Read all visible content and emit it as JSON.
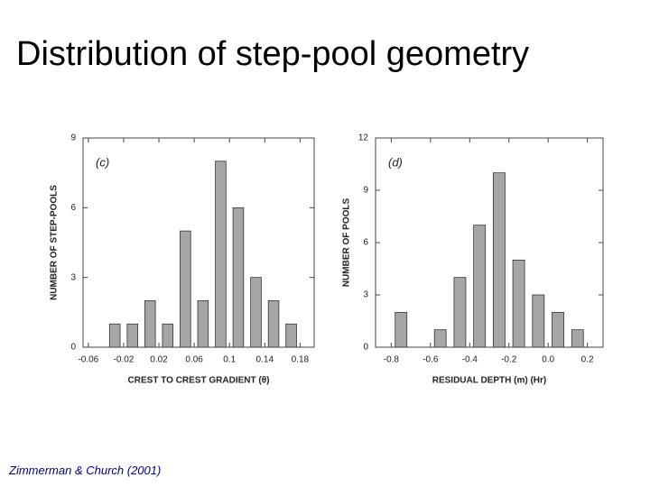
{
  "title": "Distribution of step-pool geometry",
  "citation": "Zimmerman & Church (2001)",
  "chart_data": [
    {
      "type": "histogram",
      "panel_label": "(c)",
      "xlabel": "CREST TO CREST GRADIENT (θ)",
      "ylabel": "NUMBER OF STEP-POOLS",
      "bins": [
        -0.04,
        -0.02,
        0,
        0.02,
        0.04,
        0.06,
        0.08,
        0.1,
        0.12,
        0.14,
        0.16,
        0.18
      ],
      "values": [
        1,
        1,
        2,
        1,
        5,
        2,
        8,
        6,
        3,
        2,
        1
      ],
      "color": "#a6a6a6",
      "xlim": [
        -0.066,
        0.196
      ],
      "xticks": [
        -0.06,
        -0.02,
        0.02,
        0.06,
        0.1,
        0.14,
        0.18
      ],
      "ylim": [
        0,
        9
      ],
      "yticks": [
        0,
        3,
        6,
        9
      ]
    },
    {
      "type": "histogram",
      "panel_label": "(d)",
      "xlabel": "RESIDUAL DEPTH (m) (Hr)",
      "ylabel": "NUMBER OF POOLS",
      "bins": [
        -0.8,
        -0.7,
        -0.6,
        -0.5,
        -0.4,
        -0.3,
        -0.2,
        -0.1,
        0,
        0.1,
        0.2
      ],
      "values": [
        2,
        0,
        1,
        4,
        7,
        10,
        5,
        3,
        2,
        1
      ],
      "color": "#a6a6a6",
      "xlim": [
        -0.88,
        0.28
      ],
      "xticks": [
        -0.8,
        -0.6,
        -0.4,
        -0.2,
        {
          "value": 0,
          "label": "0.0"
        },
        0.2
      ],
      "ylim": [
        0,
        12
      ],
      "yticks": [
        0,
        3,
        6,
        9,
        12
      ]
    }
  ]
}
